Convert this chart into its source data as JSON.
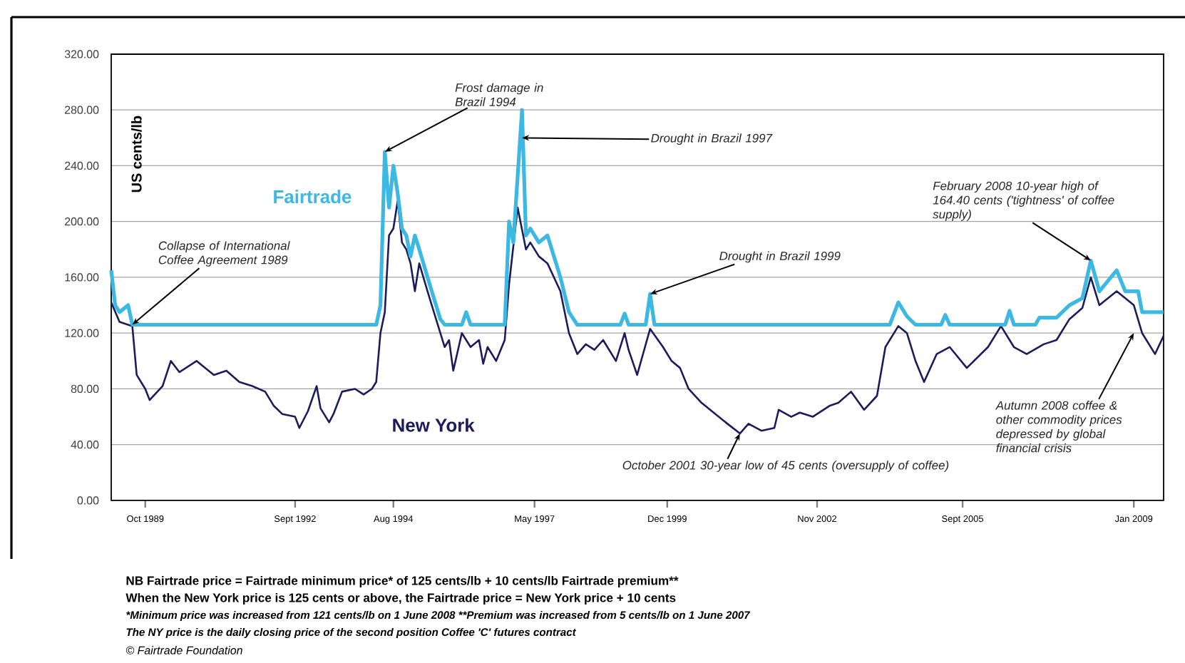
{
  "chart_data": {
    "type": "line",
    "ylabel": "US cents/lb",
    "series": [
      {
        "name": "New York",
        "color": "#1c1c5c",
        "x": [
          "1989-02",
          "1989-04",
          "1989-07",
          "1989-08",
          "1989-10",
          "1989-11",
          "1990-02",
          "1990-04",
          "1990-06",
          "1990-10",
          "1991-02",
          "1991-05",
          "1991-08",
          "1991-11",
          "1992-02",
          "1992-04",
          "1992-06",
          "1992-09",
          "1992-10",
          "1992-12",
          "1993-02",
          "1993-03",
          "1993-05",
          "1993-06",
          "1993-08",
          "1993-11",
          "1994-01",
          "1994-03",
          "1994-04",
          "1994-05",
          "1994-06",
          "1994-07",
          "1994-08",
          "1994-09",
          "1994-10",
          "1994-11",
          "1994-12",
          "1995-01",
          "1995-02",
          "1995-04",
          "1995-05",
          "1995-07",
          "1995-08",
          "1995-09",
          "1995-10",
          "1995-12",
          "1996-02",
          "1996-04",
          "1996-05",
          "1996-06",
          "1996-08",
          "1996-10",
          "1996-11",
          "1997-01",
          "1997-02",
          "1997-03",
          "1997-04",
          "1997-06",
          "1997-08",
          "1997-11",
          "1998-01",
          "1998-03",
          "1998-05",
          "1998-07",
          "1998-09",
          "1998-12",
          "1999-02",
          "1999-03",
          "1999-05",
          "1999-08",
          "1999-11",
          "2000-01",
          "2000-03",
          "2000-05",
          "2000-08",
          "2000-10",
          "2001-02",
          "2001-05",
          "2001-07",
          "2001-10",
          "2002-01",
          "2002-02",
          "2002-05",
          "2002-07",
          "2002-10",
          "2003-02",
          "2003-04",
          "2003-07",
          "2003-10",
          "2004-01",
          "2004-03",
          "2004-06",
          "2004-08",
          "2004-10",
          "2004-12",
          "2005-03",
          "2005-06",
          "2005-10",
          "2006-03",
          "2006-06",
          "2006-09",
          "2006-12",
          "2007-04",
          "2007-07",
          "2007-10",
          "2008-01",
          "2008-03",
          "2008-05",
          "2008-09",
          "2009-01",
          "2009-03",
          "2009-06",
          "2009-08"
        ],
        "values": [
          142,
          128,
          125,
          90,
          80,
          72,
          82,
          100,
          92,
          100,
          90,
          93,
          85,
          82,
          78,
          68,
          62,
          60,
          52,
          64,
          82,
          66,
          56,
          62,
          78,
          80,
          76,
          80,
          85,
          120,
          135,
          190,
          195,
          215,
          185,
          180,
          170,
          150,
          170,
          150,
          140,
          120,
          110,
          115,
          93,
          120,
          110,
          115,
          98,
          110,
          100,
          115,
          155,
          210,
          null,
          180,
          185,
          175,
          170,
          150,
          120,
          105,
          112,
          108,
          115,
          100,
          120,
          108,
          90,
          123,
          110,
          100,
          95,
          80,
          70,
          65,
          55,
          48,
          55,
          50,
          52,
          65,
          60,
          63,
          60,
          68,
          70,
          78,
          65,
          75,
          110,
          125,
          120,
          100,
          85,
          105,
          110,
          95,
          110,
          125,
          110,
          105,
          112,
          115,
          130,
          138,
          160,
          140,
          150,
          140,
          120,
          105,
          118
        ]
      },
      {
        "name": "Fairtrade",
        "color": "#3cb8e3",
        "x": [
          "1989-02",
          "1989-03",
          "1989-04",
          "1989-06",
          "1989-07",
          "1994-04",
          "1994-05",
          "1994-06",
          "1994-07",
          "1994-08",
          "1994-09",
          "1994-10",
          "1994-11",
          "1994-12",
          "1995-01",
          "1995-02",
          "1995-04",
          "1995-05",
          "1995-07",
          "1995-08",
          "1995-12",
          "1996-01",
          "1996-02",
          "1996-10",
          "1996-11",
          "1996-12",
          "1997-02",
          "1997-03",
          "1997-04",
          "1997-06",
          "1997-08",
          "1997-11",
          "1998-01",
          "1998-03",
          "1999-01",
          "1999-02",
          "1999-03",
          "1999-07",
          "1999-08",
          "1999-09",
          "2004-04",
          "2004-06",
          "2004-08",
          "2004-10",
          "2005-04",
          "2005-05",
          "2005-06",
          "2006-07",
          "2006-08",
          "2006-09",
          "2007-02",
          "2007-03",
          "2007-07",
          "2007-10",
          "2008-01",
          "2008-03",
          "2008-05",
          "2008-09",
          "2008-11",
          "2009-02",
          "2009-03",
          "2009-08"
        ],
        "values": [
          165,
          140,
          135,
          140,
          126,
          126,
          140,
          250,
          210,
          240,
          220,
          195,
          190,
          175,
          190,
          180,
          160,
          150,
          130,
          126,
          126,
          135,
          126,
          126,
          200,
          185,
          280,
          190,
          195,
          185,
          190,
          160,
          135,
          126,
          126,
          134,
          126,
          126,
          148,
          126,
          126,
          142,
          132,
          126,
          126,
          133,
          126,
          126,
          136,
          126,
          126,
          131,
          131,
          140,
          145,
          172,
          150,
          165,
          150,
          150,
          135,
          135
        ]
      }
    ],
    "xlim": [
      "1989-02",
      "2009-08"
    ],
    "xticks": [
      {
        "value": "1989-10",
        "label": "Oct 1989"
      },
      {
        "value": "1992-09",
        "label": "Sept 1992"
      },
      {
        "value": "1994-08",
        "label": "Aug 1994"
      },
      {
        "value": "1997-05",
        "label": "May 1997"
      },
      {
        "value": "1999-12",
        "label": "Dec 1999"
      },
      {
        "value": "2002-11",
        "label": "Nov 2002"
      },
      {
        "value": "2005-09",
        "label": "Sept 2005"
      },
      {
        "value": "2009-01",
        "label": "Jan 2009"
      }
    ],
    "ylim": [
      0,
      320
    ],
    "yticks": [
      {
        "value": 0,
        "label": "0.00"
      },
      {
        "value": 40,
        "label": "40.00"
      },
      {
        "value": 80,
        "label": "80.00"
      },
      {
        "value": 120,
        "label": "120.00"
      },
      {
        "value": 160,
        "label": "160.00"
      },
      {
        "value": 200,
        "label": "200.00"
      },
      {
        "value": 240,
        "label": "240.00"
      },
      {
        "value": 280,
        "label": "280.00"
      },
      {
        "value": 320,
        "label": "320.00"
      }
    ],
    "grid": "y",
    "annotations": [
      {
        "text": "Collapse of International Coffee Agreement 1989",
        "x": "1989-07",
        "y": 126
      },
      {
        "text": "Frost damage in Brazil 1994",
        "x": "1994-06",
        "y": 250
      },
      {
        "text": "Drought in Brazil 1997",
        "x": "1997-02",
        "y": 260
      },
      {
        "text": "Drought in Brazil 1999",
        "x": "1999-08",
        "y": 148
      },
      {
        "text": "February 2008 10-year high of 164.40 cents ('tightness' of coffee supply)",
        "x": "2008-03",
        "y": 172
      },
      {
        "text": "Autumn 2008 coffee & other commodity prices depressed by global financial crisis",
        "x": "2009-01",
        "y": 120
      },
      {
        "text": "October 2001 30-year low of 45 cents (oversupply of coffee)",
        "x": "2001-05",
        "y": 48
      },
      "NB Fairtrade price = Fairtrade minimum price* of 125 cents/lb + 10 cents/lb Fairtrade premium**",
      "When the New York price is 125 cents or above, the Fairtrade price = New York price + 10 cents",
      "*Minimum price was increased from 121 cents/lb on 1 June 2008 **Premium was increased from 5 cents/lb on 1 June 2007",
      "The NY price is the daily closing price of the second position Coffee 'C' futures contract",
      "© Fairtrade Foundation"
    ]
  }
}
